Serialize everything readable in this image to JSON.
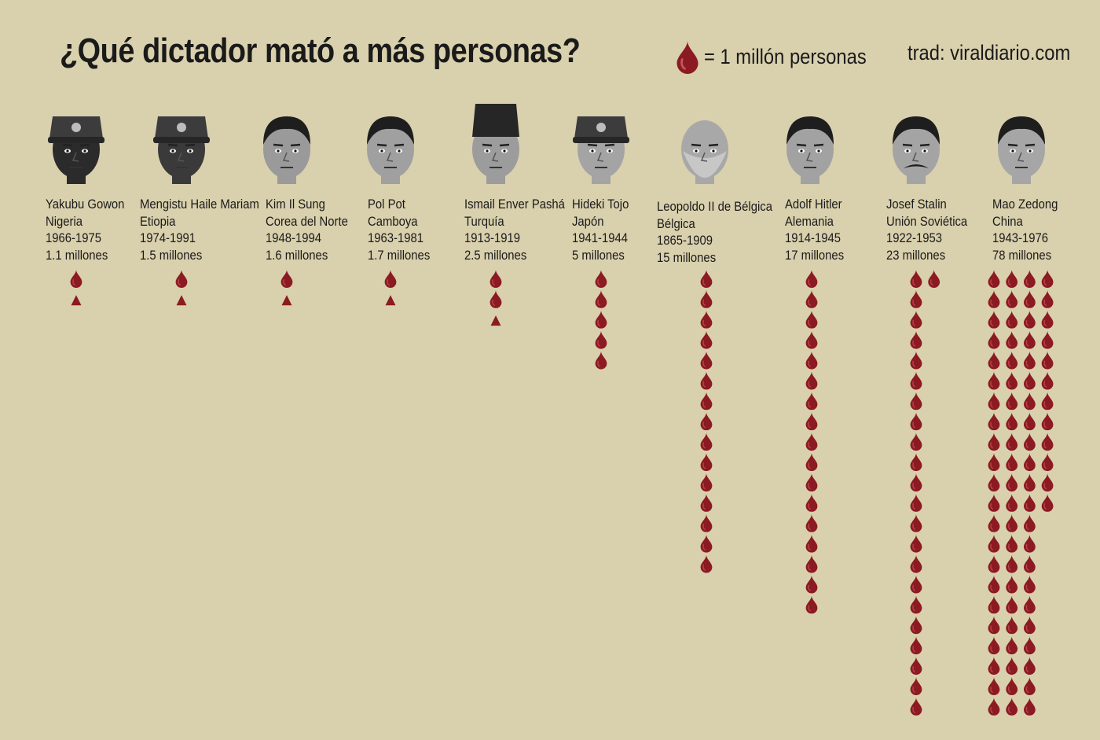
{
  "title": "¿Qué dictador mató a más personas?",
  "legend": {
    "icon": "blood-drop-icon",
    "text": "= 1 millón personas",
    "unit_value": 1,
    "color": "#8b1a22"
  },
  "credit": "trad: viraldiario.com",
  "colors": {
    "background": "#d9d0ad",
    "drop": "#8b1a22",
    "drop_highlight": "#b4434a",
    "text": "#1a1a1a"
  },
  "chart_data": {
    "type": "pictograph",
    "unit": "1 millón personas",
    "series": [
      {
        "name": "Yakubu Gowon",
        "country": "Nigeria",
        "years": "1966-1975",
        "value_label": "1.1 millones",
        "value": 1.1,
        "icon": "face-military-cap-icon",
        "skin": "#2b2b2b"
      },
      {
        "name": "Mengistu Haile Mariam",
        "country": "Etiopia",
        "years": "1974-1991",
        "value_label": "1.5 millones",
        "value": 1.5,
        "icon": "face-military-cap-icon",
        "skin": "#3a3a3a"
      },
      {
        "name": "Kim Il Sung",
        "country": "Corea del Norte",
        "years": "1948-1994",
        "value_label": "1.6 millones",
        "value": 1.6,
        "icon": "face-icon",
        "skin": "#9a9a9a"
      },
      {
        "name": "Pol Pot",
        "country": "Camboya",
        "years": "1963-1981",
        "value_label": "1.7 millones",
        "value": 1.7,
        "icon": "face-icon",
        "skin": "#a0a0a0"
      },
      {
        "name": "Ismail Enver Pashá",
        "country": "Turquía",
        "years": "1913-1919",
        "value_label": "2.5 millones",
        "value": 2.5,
        "icon": "face-fez-icon",
        "skin": "#9c9c9c"
      },
      {
        "name": "Hideki Tojo",
        "country": "Japón",
        "years": "1941-1944",
        "value_label": "5 millones",
        "value": 5,
        "icon": "face-military-cap-icon",
        "skin": "#a4a4a4"
      },
      {
        "name": "Leopoldo II de Bélgica",
        "country": "Bélgica",
        "years": "1865-1909",
        "value_label": "15 millones",
        "value": 15,
        "icon": "face-beard-icon",
        "skin": "#a8a8a8"
      },
      {
        "name": "Adolf Hitler",
        "country": "Alemania",
        "years": "1914-1945",
        "value_label": "17 millones",
        "value": 17,
        "icon": "face-icon",
        "skin": "#a2a2a2"
      },
      {
        "name": "Josef Stalin",
        "country": "Unión Soviética",
        "years": "1922-1953",
        "value_label": "23 millones",
        "value": 23,
        "icon": "face-mustache-icon",
        "skin": "#a4a4a4"
      },
      {
        "name": "Mao Zedong",
        "country": "China",
        "years": "1943-1976",
        "value_label": "78 millones",
        "value": 78,
        "icon": "face-icon",
        "skin": "#a6a6a6"
      }
    ]
  }
}
